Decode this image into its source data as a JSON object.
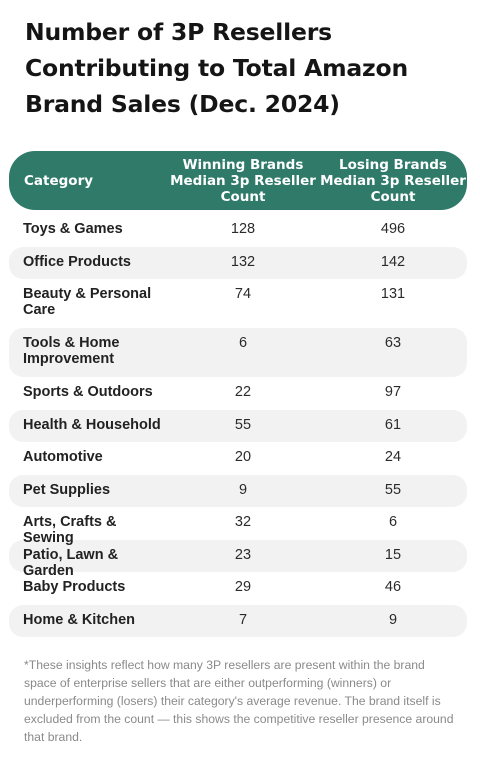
{
  "title": "Number of 3P Resellers Contributing to Total Amazon Brand Sales (Dec. 2024)",
  "chart_data": {
    "type": "table",
    "columns": [
      "Category",
      "Winning Brands Median 3p Reseller Count",
      "Losing Brands Median 3p Reseller Count"
    ],
    "rows": [
      {
        "category": "Toys & Games",
        "winning": "128",
        "losing": "496"
      },
      {
        "category": "Office Products",
        "winning": "132",
        "losing": "142"
      },
      {
        "category": "Beauty & Personal Care",
        "winning": "74",
        "losing": "131"
      },
      {
        "category": "Tools & Home Improvement",
        "winning": "6",
        "losing": "63"
      },
      {
        "category": "Sports & Outdoors",
        "winning": "22",
        "losing": "97"
      },
      {
        "category": "Health & Household",
        "winning": "55",
        "losing": "61"
      },
      {
        "category": "Automotive",
        "winning": "20",
        "losing": "24"
      },
      {
        "category": "Pet Supplies",
        "winning": "9",
        "losing": "55"
      },
      {
        "category": "Arts, Crafts & Sewing",
        "winning": "32",
        "losing": "6"
      },
      {
        "category": "Patio, Lawn & Garden",
        "winning": "23",
        "losing": "15"
      },
      {
        "category": "Baby Products",
        "winning": "29",
        "losing": "46"
      },
      {
        "category": "Home & Kitchen",
        "winning": "7",
        "losing": "9"
      }
    ],
    "header_color": "#2f7a69",
    "stripe_color": "#f2f2f2"
  },
  "footnote": "*These insights reflect how many 3P resellers are present within the brand space of enterprise sellers that are either outperforming (winners) or underperforming (losers) their category's average revenue. The brand itself is excluded from the count — this shows the competitive reseller presence around that brand."
}
